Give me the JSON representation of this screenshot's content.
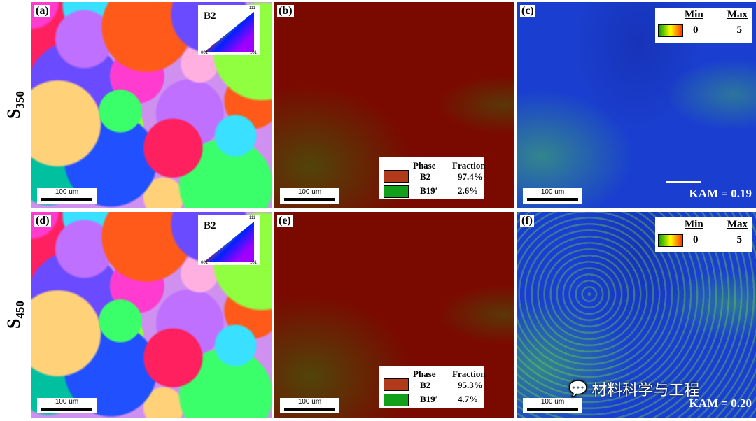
{
  "rows": [
    {
      "label": "S",
      "sub": "350"
    },
    {
      "label": "S",
      "sub": "450"
    }
  ],
  "panels": {
    "a": {
      "tag": "(a)",
      "scale": "100 um",
      "ipf": {
        "phase": "B2",
        "v111": "111",
        "v001": "001",
        "v101": "101"
      }
    },
    "b": {
      "tag": "(b)",
      "scale": "100 um",
      "legend": {
        "h1": "Phase",
        "h2": "Fraction",
        "rows": [
          {
            "phase": "B2",
            "fraction": "97.4%",
            "color": "#b03a1a"
          },
          {
            "phase": "B19′",
            "fraction": "2.6%",
            "color": "#12a01a"
          }
        ]
      }
    },
    "c": {
      "tag": "(c)",
      "scale": "100 um",
      "min_label": "Min",
      "max_label": "Max",
      "min": "0",
      "max": "5",
      "kam": "KAM = 0.19"
    },
    "d": {
      "tag": "(d)",
      "scale": "100 um",
      "ipf": {
        "phase": "B2",
        "v111": "111",
        "v001": "001",
        "v101": "101"
      }
    },
    "e": {
      "tag": "(e)",
      "scale": "100 um",
      "legend": {
        "h1": "Phase",
        "h2": "Fraction",
        "rows": [
          {
            "phase": "B2",
            "fraction": "95.3%",
            "color": "#b03a1a"
          },
          {
            "phase": "B19′",
            "fraction": "4.7%",
            "color": "#12a01a"
          }
        ]
      }
    },
    "f": {
      "tag": "(f)",
      "scale": "100 um",
      "min_label": "Min",
      "max_label": "Max",
      "min": "0",
      "max": "5",
      "kam": "KAM = 0.20"
    }
  },
  "colors": {
    "phase_bg": "#7a0a00",
    "kam_bg": "#1a3fd0"
  },
  "watermark": "材料科学与工程"
}
